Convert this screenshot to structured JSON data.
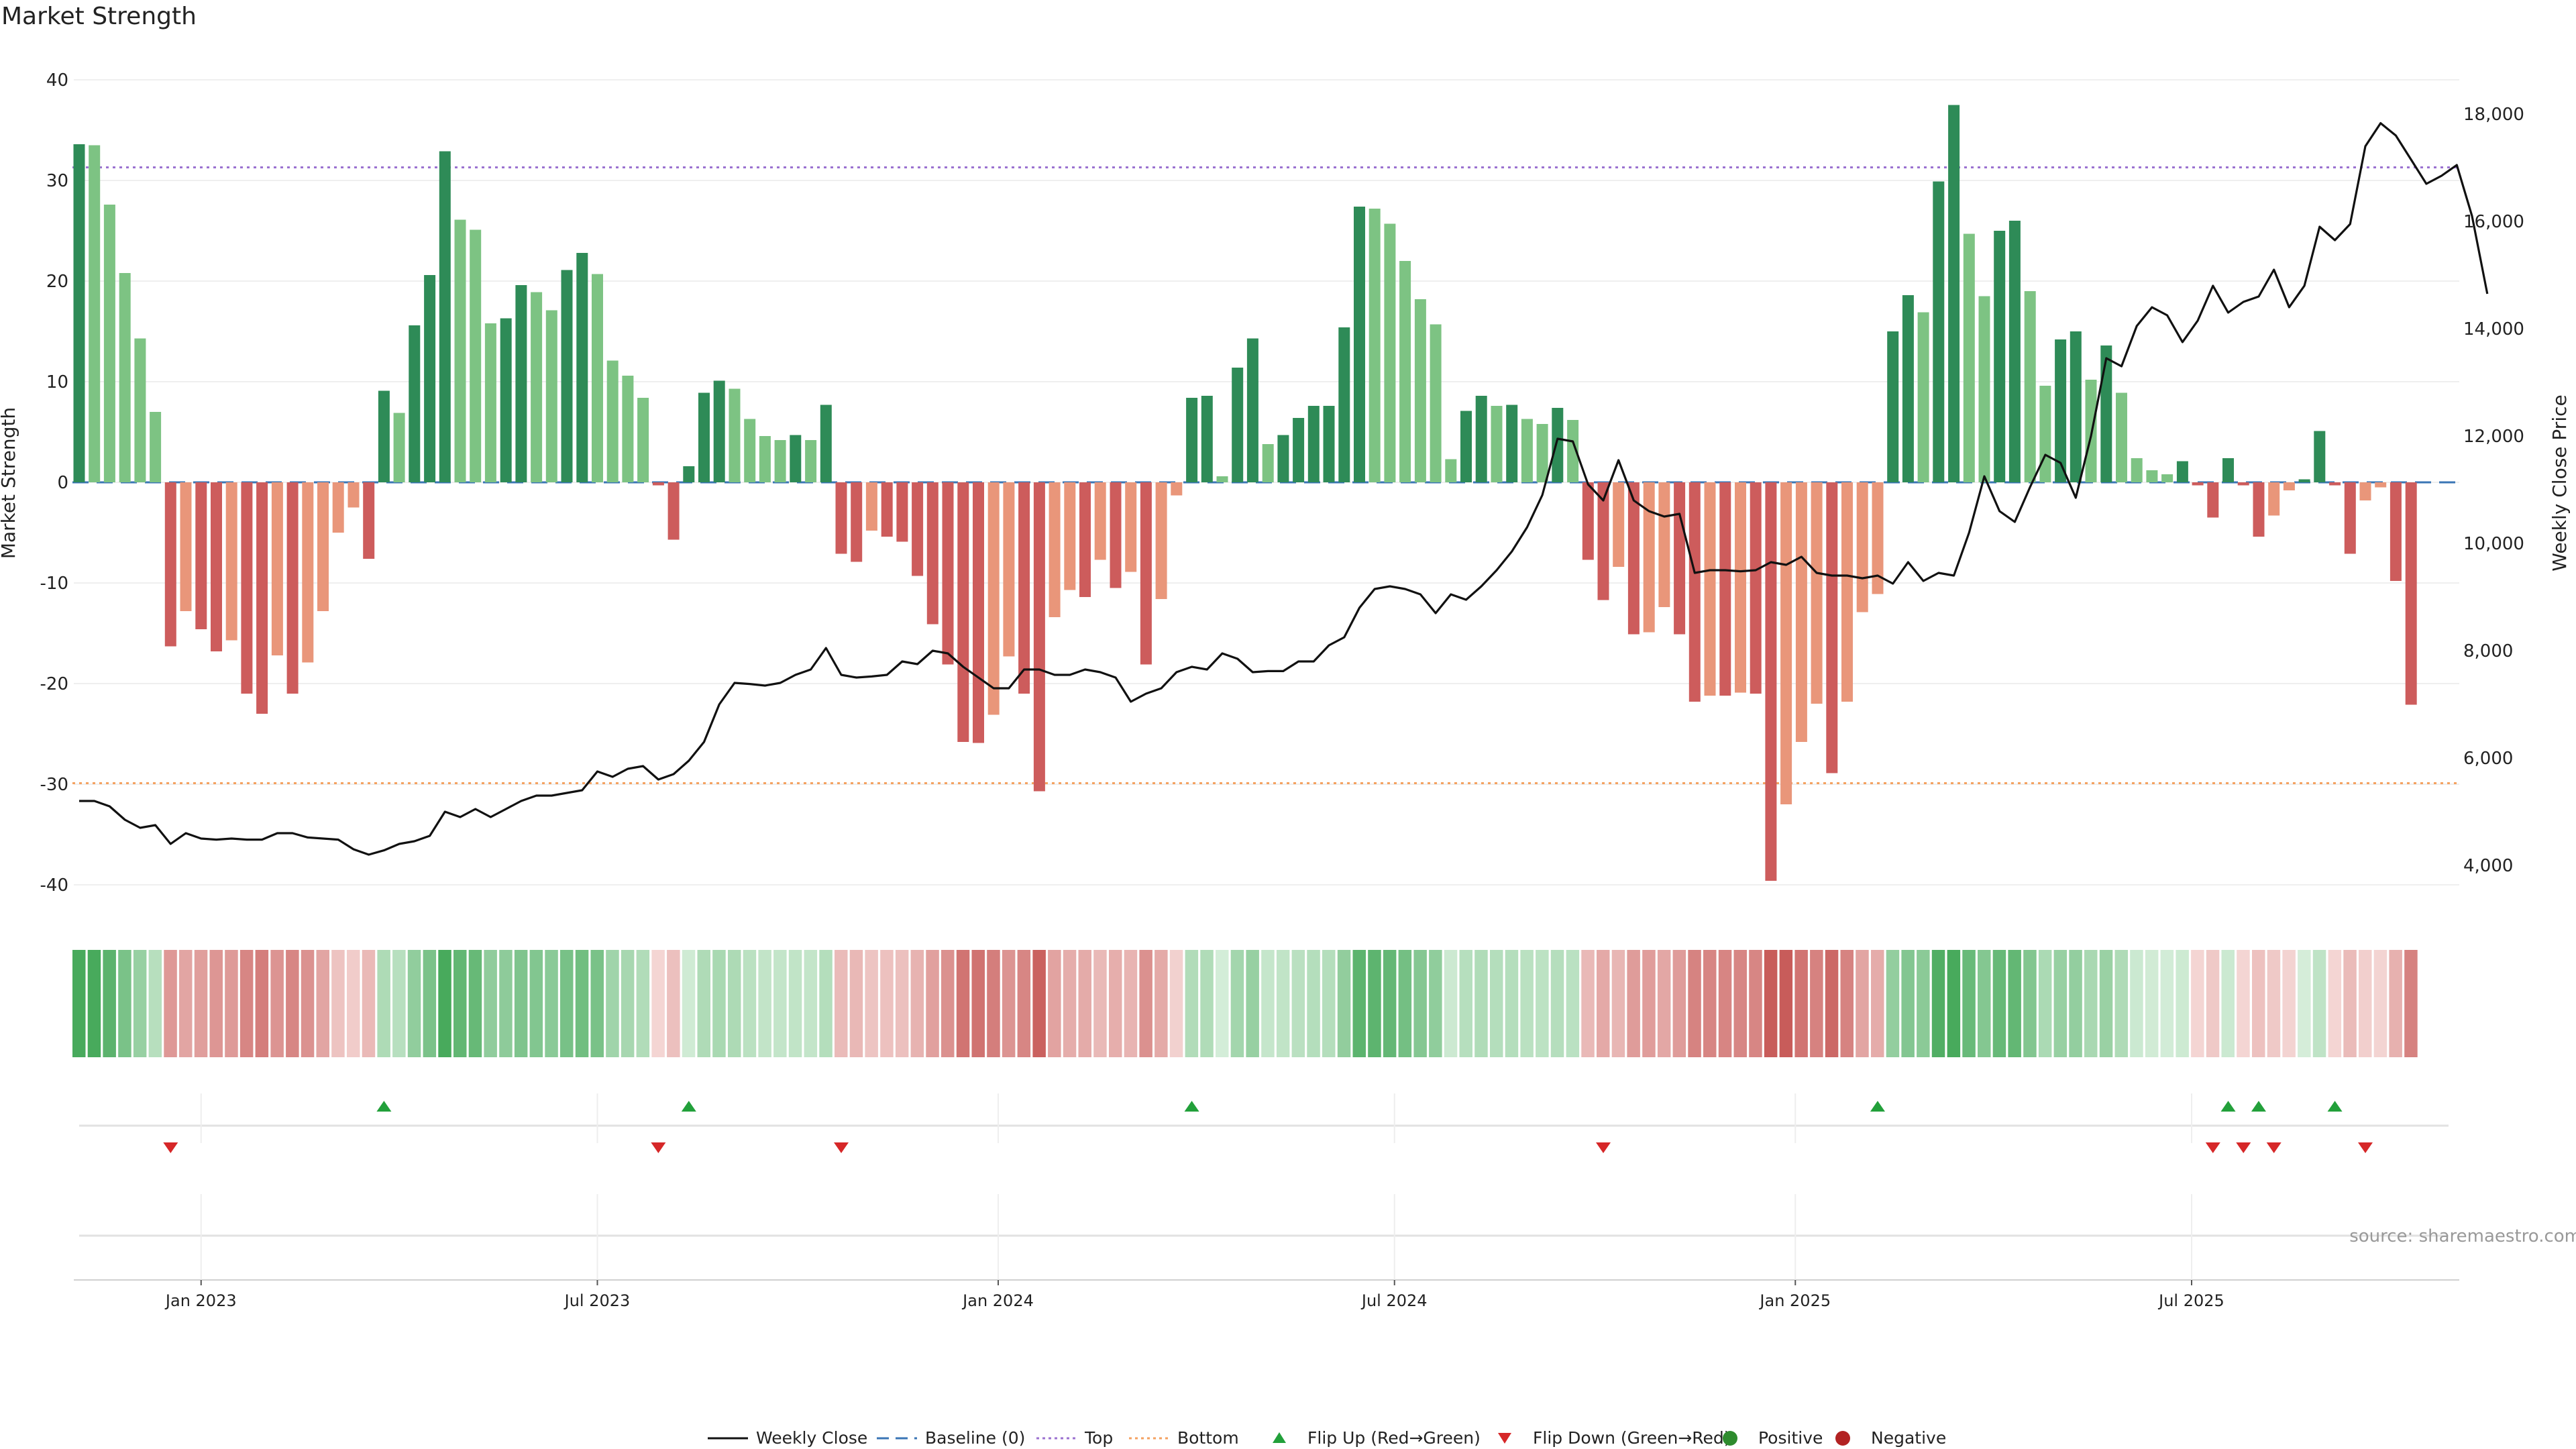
{
  "chart_data": {
    "type": "bar",
    "title": "Market Strength",
    "ylabel": "Market Strength",
    "y2label": "Weekly Close Price",
    "ylim": [
      -42,
      42
    ],
    "y2lim": [
      3400,
      18600
    ],
    "yticks": [
      40,
      30,
      20,
      10,
      0,
      -10,
      -20,
      -30,
      -40
    ],
    "y2ticks": [
      18000,
      16000,
      14000,
      12000,
      10000,
      8000,
      6000,
      4000
    ],
    "y2tick_labels": [
      "18,000",
      "16,000",
      "14,000",
      "12,000",
      "10,000",
      "8,000",
      "6,000",
      "4,000"
    ],
    "top_line": 31.3,
    "bottom_line": -29.9,
    "x_start": "2022-10-24",
    "x_step": "1 week",
    "xticks": [
      "Jan 2023",
      "Jul 2023",
      "Jan 2024",
      "Jul 2024",
      "Jan 2025",
      "Jul 2025"
    ],
    "xtick_positions": [
      8.0,
      34.0,
      60.3,
      86.3,
      112.6,
      138.6
    ],
    "strength": [
      33.6,
      33.5,
      27.6,
      20.8,
      14.3,
      7.0,
      -16.3,
      -12.8,
      -14.6,
      -16.8,
      -15.7,
      -21.0,
      -23.0,
      -17.2,
      -21.0,
      -17.9,
      -12.8,
      -5.0,
      -2.5,
      -7.6,
      9.1,
      6.9,
      15.6,
      20.6,
      32.9,
      26.1,
      25.1,
      15.8,
      16.3,
      19.6,
      18.9,
      17.1,
      21.1,
      22.8,
      20.7,
      12.1,
      10.6,
      8.4,
      -0.3,
      -5.7,
      1.6,
      8.9,
      10.1,
      9.3,
      6.3,
      4.6,
      4.2,
      4.7,
      4.2,
      7.7,
      -7.1,
      -7.9,
      -4.8,
      -5.4,
      -5.9,
      -9.3,
      -14.1,
      -18.1,
      -25.8,
      -25.9,
      -23.1,
      -17.3,
      -21.0,
      -30.7,
      -13.4,
      -10.7,
      -11.4,
      -7.7,
      -10.5,
      -8.9,
      -18.1,
      -11.6,
      -1.3,
      8.4,
      8.6,
      0.6,
      11.4,
      14.3,
      3.8,
      4.7,
      6.4,
      7.6,
      7.6,
      15.4,
      27.4,
      27.2,
      25.7,
      22.0,
      18.2,
      15.7,
      2.3,
      7.1,
      8.6,
      7.6,
      7.7,
      6.3,
      5.8,
      7.4,
      6.2,
      -7.7,
      -11.7,
      -8.4,
      -15.1,
      -14.9,
      -12.4,
      -15.1,
      -21.8,
      -21.2,
      -21.2,
      -20.9,
      -21.0,
      -39.6,
      -32.0,
      -25.8,
      -22.0,
      -28.9,
      -21.8,
      -12.9,
      -11.1,
      15.0,
      18.6,
      16.9,
      29.9,
      37.5,
      24.7,
      18.5,
      25.0,
      26.0,
      19.0,
      9.6,
      14.2,
      15.0,
      10.2,
      13.6,
      8.9,
      2.4,
      1.2,
      0.8,
      2.1,
      -0.3,
      -3.5,
      2.4,
      -0.3,
      -5.4,
      -3.3,
      -0.8,
      0.3,
      5.1,
      -0.3,
      -7.1,
      -1.8,
      -0.5,
      -9.8,
      -22.1
    ],
    "close": [
      5200,
      5200,
      5100,
      4850,
      4700,
      4750,
      4400,
      4600,
      4500,
      4480,
      4500,
      4480,
      4480,
      4600,
      4600,
      4520,
      4500,
      4480,
      4300,
      4200,
      4280,
      4400,
      4450,
      4550,
      5000,
      4900,
      5050,
      4900,
      5050,
      5200,
      5300,
      5300,
      5350,
      5400,
      5750,
      5650,
      5800,
      5850,
      5600,
      5700,
      5950,
      6300,
      7000,
      7400,
      7380,
      7350,
      7400,
      7550,
      7650,
      8050,
      7550,
      7500,
      7520,
      7550,
      7800,
      7750,
      8000,
      7950,
      7700,
      7500,
      7300,
      7300,
      7650,
      7650,
      7550,
      7550,
      7650,
      7600,
      7500,
      7050,
      7200,
      7300,
      7600,
      7700,
      7650,
      7950,
      7850,
      7600,
      7620,
      7620,
      7800,
      7800,
      8100,
      8250,
      8800,
      9150,
      9200,
      9150,
      9050,
      8700,
      9050,
      8950,
      9200,
      9500,
      9850,
      10300,
      10900,
      11950,
      11900,
      11100,
      10800,
      11550,
      10800,
      10600,
      10500,
      10550,
      9450,
      9500,
      9500,
      9480,
      9500,
      9650,
      9600,
      9750,
      9450,
      9400,
      9400,
      9350,
      9400,
      9250,
      9650,
      9300,
      9450,
      9400,
      10200,
      11250,
      10600,
      10400,
      11050,
      11650,
      11500,
      10850,
      12000,
      13450,
      13300,
      14050,
      14400,
      14250,
      13750,
      14150,
      14800,
      14300,
      14500,
      14600,
      15100,
      14400,
      14800,
      15900,
      15650,
      15950,
      17400,
      17830,
      17600,
      17150,
      16700,
      16850,
      17050,
      16100,
      14650
    ],
    "flips_up": [
      20,
      40,
      73,
      118,
      141,
      143,
      148
    ],
    "flips_down": [
      6,
      38,
      50,
      100,
      140,
      142,
      144,
      150
    ],
    "legend": [
      "Weekly Close",
      "Baseline (0)",
      "Top",
      "Bottom",
      "Flip Up (Red→Green)",
      "Flip Down (Green→Red)",
      "Positive",
      "Negative"
    ],
    "annotation": "source: sharemaestro.com",
    "colors": {
      "pos_strong": "#2e8b57",
      "pos_light": "#7dc383",
      "neg_strong": "#cd5c5c",
      "neg_light": "#e9967a",
      "close": "#111111",
      "baseline": "#3a75b5",
      "top": "#9b72d0",
      "bottom": "#f4a261",
      "flip_up": "#22a03a",
      "flip_down": "#d62728",
      "positive_dot": "#2e8b2e",
      "negative_dot": "#b22222"
    }
  }
}
